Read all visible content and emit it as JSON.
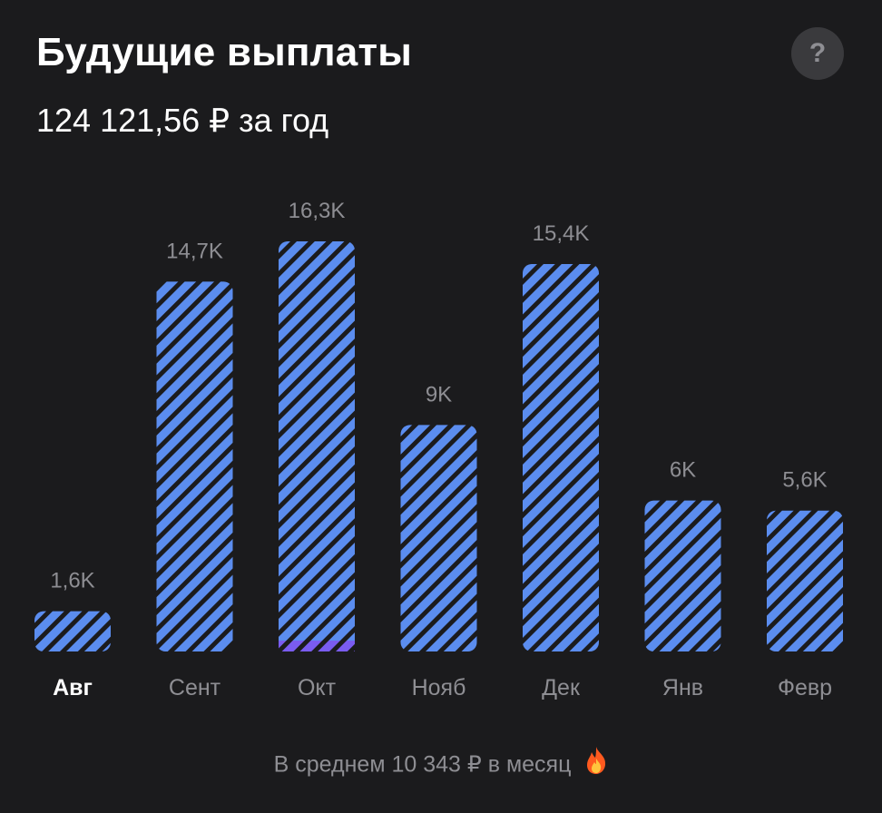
{
  "header": {
    "title": "Будущие выплаты",
    "help_label": "?",
    "subtitle": "124 121,56 ₽ за год"
  },
  "chart_data": {
    "type": "bar",
    "categories": [
      "Авг",
      "Сент",
      "Окт",
      "Нояб",
      "Дек",
      "Янв",
      "Февр"
    ],
    "values": [
      1.6,
      14.7,
      16.3,
      9,
      15.4,
      6,
      5.6
    ],
    "value_labels": [
      "1,6K",
      "14,7K",
      "16,3K",
      "9K",
      "15,4K",
      "6K",
      "5,6K"
    ],
    "selected_category": "Авг",
    "unit": "K ₽",
    "bar_color": "#5b8def",
    "stripe_color": "#1b1b1d",
    "accent_segment_color": "#7a5cf0",
    "label_color": "#8e8e93"
  },
  "footer": {
    "text": "В среднем 10 343 ₽ в месяц",
    "icon": "fire-icon"
  },
  "colors": {
    "background": "#1b1b1d",
    "help_bg": "#3a3a3d"
  }
}
